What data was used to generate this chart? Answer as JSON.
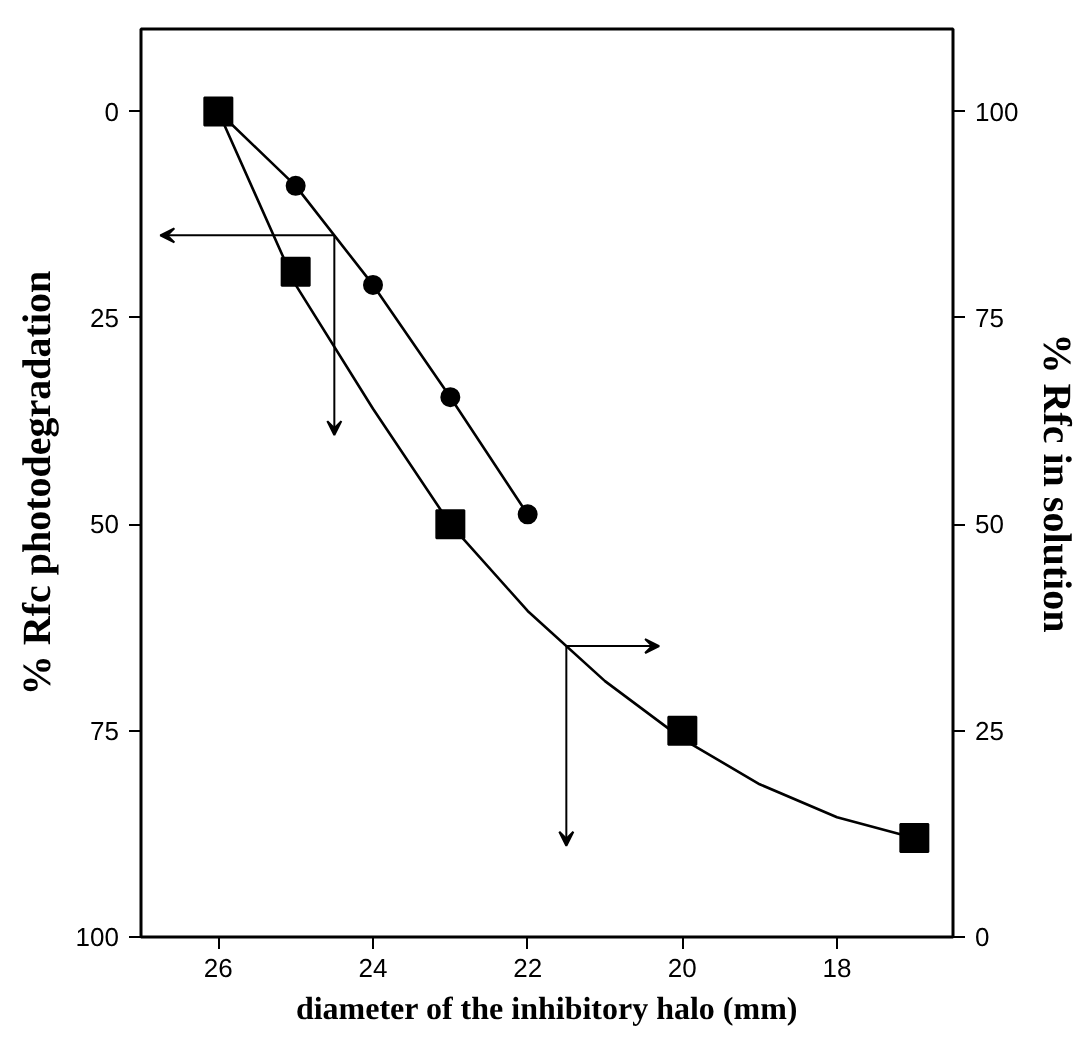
{
  "chart_data": {
    "type": "line",
    "xlabel": "diameter of the inhibitory halo (mm)",
    "ylabel": "% Rfc photodegradation",
    "y2label": "% Rfc in solution",
    "xlim": [
      27,
      16.5
    ],
    "xticks": [
      26,
      24,
      22,
      20,
      18
    ],
    "ylim": [
      100,
      -10
    ],
    "yticks": [
      0,
      25,
      50,
      75,
      100
    ],
    "y2lim": [
      0,
      110
    ],
    "y2ticks": [
      0,
      25,
      50,
      75,
      100
    ],
    "series": [
      {
        "marker": "circle",
        "color": "#000000",
        "x": [
          26,
          25,
          24,
          23,
          22
        ],
        "values": [
          0,
          9,
          21,
          34.6,
          48.8
        ]
      },
      {
        "type": "scatter",
        "marker": "square",
        "axis": "y2",
        "color": "#000000",
        "x": [
          26,
          25,
          23,
          20,
          17
        ],
        "values": [
          100,
          80.6,
          50,
          25,
          12
        ]
      },
      {
        "marker": "none",
        "axis": "y2",
        "color": "#000000",
        "x": [
          26,
          25,
          24,
          23,
          22,
          21,
          20,
          19,
          18,
          17
        ],
        "values": [
          100,
          79,
          64,
          50,
          39.5,
          31,
          24,
          18.5,
          14.5,
          12
        ]
      }
    ]
  }
}
